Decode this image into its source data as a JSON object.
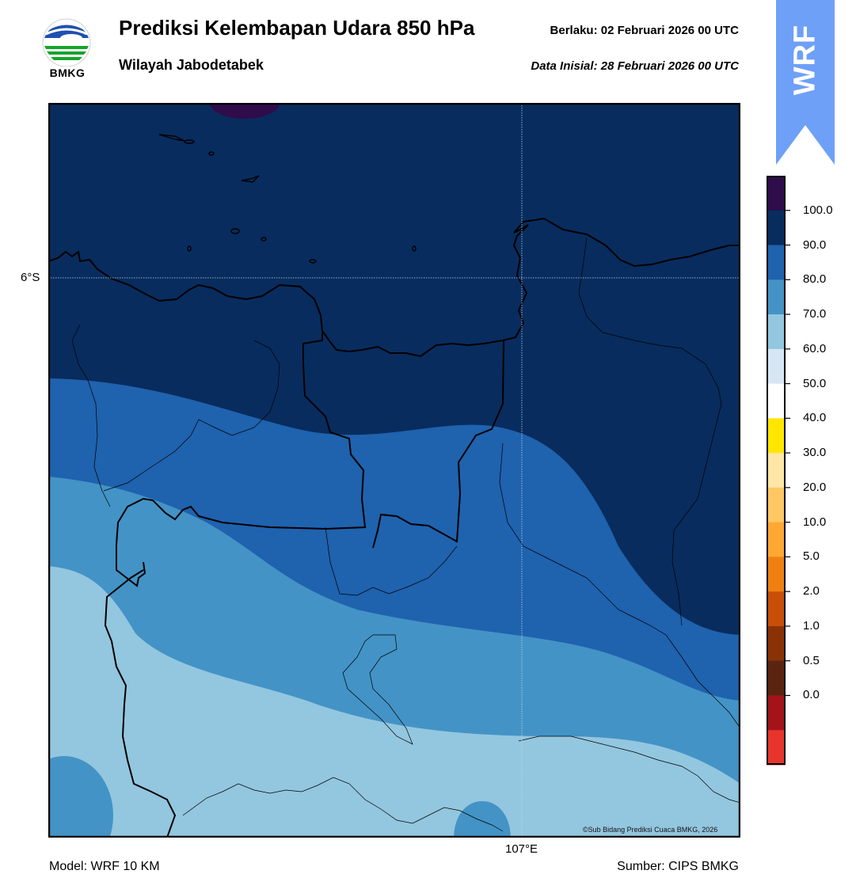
{
  "header": {
    "title": "Prediksi Kelembapan Udara 850 hPa",
    "subtitle": "Wilayah Jabodetabek",
    "valid": "Berlaku:  02 Februari 2026 00 UTC",
    "init": "Data Inisial:  28 Februari 2026 00 UTC"
  },
  "logo": {
    "text": "BMKG"
  },
  "badge": {
    "text": "WRF",
    "color": "#6ea0f8"
  },
  "map": {
    "lat_label": "6°S",
    "lon_label": "107°E",
    "copyright": "©Sub Bidang Prediksi Cuaca BMKG, 2026",
    "band_colors": [
      "#2f0c4a",
      "#082c5e",
      "#1f62ae",
      "#4393c6",
      "#93c6df"
    ]
  },
  "colorbar": {
    "ticks": [
      "100.0",
      "90.0",
      "80.0",
      "70.0",
      "60.0",
      "50.0",
      "40.0",
      "30.0",
      "20.0",
      "10.0",
      "5.0",
      "2.0",
      "1.0",
      "0.5",
      "0.0"
    ],
    "colors": [
      "#2f0c4a",
      "#082c5e",
      "#1f62ae",
      "#4393c6",
      "#93c6df",
      "#d6e6f4",
      "#ffffff",
      "#ffe600",
      "#ffe6a6",
      "#ffc764",
      "#ffa733",
      "#f07f12",
      "#c94f08",
      "#8a3206",
      "#5a2410",
      "#a4121a",
      "#e8352c"
    ]
  },
  "footer": {
    "model": "Model: WRF 10 KM",
    "source": "Sumber: CIPS BMKG"
  }
}
